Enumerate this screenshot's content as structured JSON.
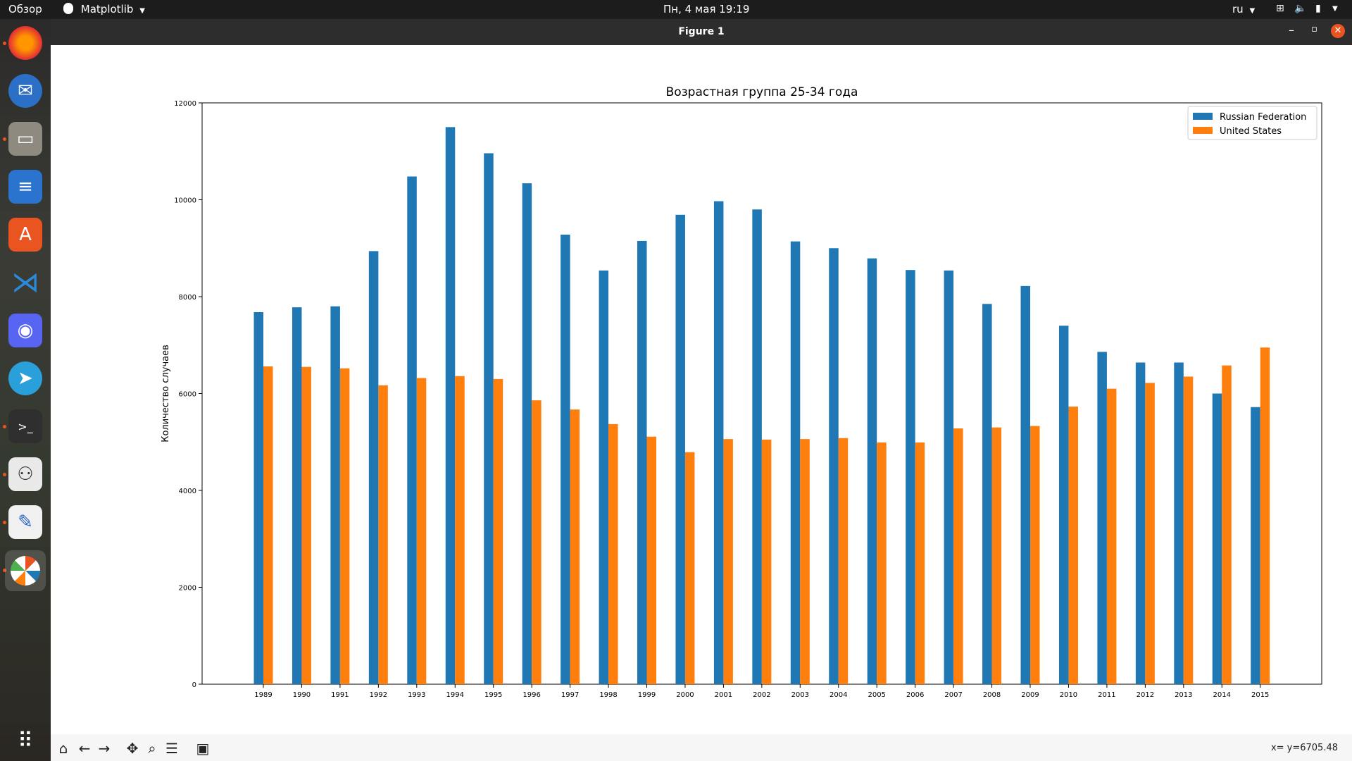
{
  "topbar": {
    "overview": "Обзор",
    "app_name": "Matplotlib",
    "datetime": "Пн, 4 мая  19:19",
    "lang": "ru"
  },
  "window": {
    "title": "Figure 1"
  },
  "status": {
    "coords": "x= y=6705.48"
  },
  "colors": {
    "russia": "#1f77b4",
    "usa": "#ff7f0e"
  },
  "chart_data": {
    "type": "bar",
    "title": "Возрастная группа 25-34 года",
    "xlabel": "",
    "ylabel": "Количество случаев",
    "ylim": [
      0,
      12000
    ],
    "yticks": [
      0,
      2000,
      4000,
      6000,
      8000,
      10000,
      12000
    ],
    "legend_position": "top-right",
    "categories": [
      "1989",
      "1990",
      "1991",
      "1992",
      "1993",
      "1994",
      "1995",
      "1996",
      "1997",
      "1998",
      "1999",
      "2000",
      "2001",
      "2002",
      "2003",
      "2004",
      "2005",
      "2006",
      "2007",
      "2008",
      "2009",
      "2010",
      "2011",
      "2012",
      "2013",
      "2014",
      "2015"
    ],
    "series": [
      {
        "name": "Russian Federation",
        "values": [
          7680,
          7780,
          7800,
          8940,
          10480,
          11500,
          10960,
          10340,
          9280,
          8540,
          9150,
          9690,
          9970,
          9800,
          9140,
          9000,
          8790,
          8550,
          8540,
          7850,
          8220,
          7400,
          6860,
          6640,
          6640,
          6000,
          5720
        ]
      },
      {
        "name": "United States",
        "values": [
          6560,
          6550,
          6520,
          6170,
          6320,
          6360,
          6300,
          5860,
          5670,
          5370,
          5110,
          4790,
          5060,
          5050,
          5060,
          5080,
          4990,
          4990,
          5280,
          5300,
          5330,
          5730,
          6100,
          6220,
          6350,
          6580,
          6950
        ]
      }
    ]
  }
}
